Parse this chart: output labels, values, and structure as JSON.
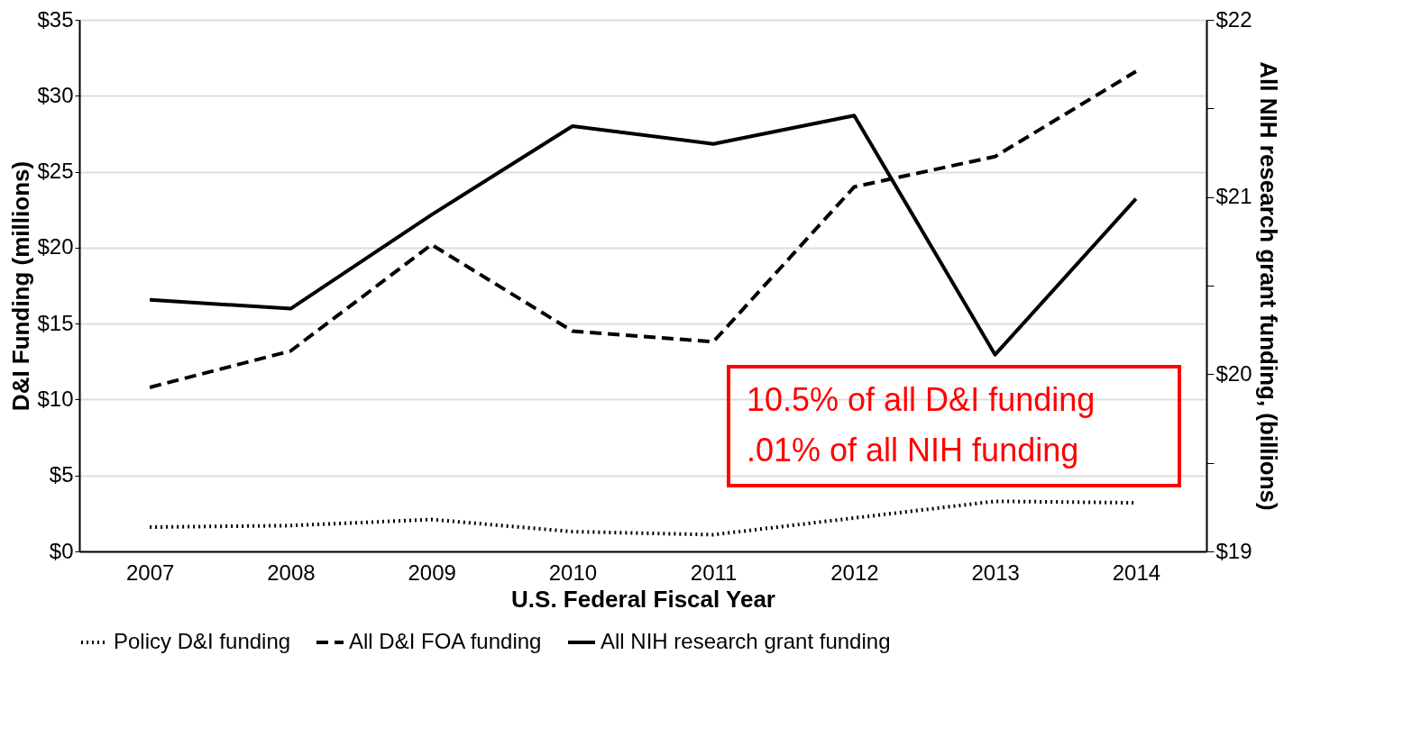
{
  "chart_data": {
    "type": "line",
    "xlabel": "U.S. Federal Fiscal Year",
    "ylabel": "D&I Funding (millions)",
    "y2label": "All NIH research grant funding, (billions)",
    "categories": [
      "2007",
      "2008",
      "2009",
      "2010",
      "2011",
      "2012",
      "2013",
      "2014"
    ],
    "series": [
      {
        "name": "Policy D&I funding",
        "color": "#000000",
        "line_style": "dotted",
        "values": [
          1.6,
          1.7,
          2.1,
          1.3,
          1.1,
          2.2,
          3.3,
          3.2
        ]
      },
      {
        "name": "All D&I FOA funding",
        "color": "#000000",
        "line_style": "dashed",
        "values": [
          10.8,
          13.2,
          20.2,
          14.5,
          13.8,
          24.0,
          26.0,
          31.6
        ]
      },
      {
        "name": "All NIH research grant funding",
        "color": "#000000",
        "line_style": "solid",
        "axis": "y2",
        "values": [
          20.42,
          20.37,
          20.9,
          21.4,
          21.3,
          21.46,
          20.11,
          20.99
        ]
      }
    ],
    "ylim": [
      0,
      35
    ],
    "yticks": [
      {
        "value": 0,
        "label": "$0"
      },
      {
        "value": 5,
        "label": "$5"
      },
      {
        "value": 10,
        "label": "$10"
      },
      {
        "value": 15,
        "label": "$15"
      },
      {
        "value": 20,
        "label": "$20"
      },
      {
        "value": 25,
        "label": "$25"
      },
      {
        "value": 30,
        "label": "$30"
      },
      {
        "value": 35,
        "label": "$35"
      }
    ],
    "y2lim": [
      19,
      22
    ],
    "y2ticks": [
      {
        "value": 19,
        "label": "$19"
      },
      {
        "value": 19.5,
        "label": null
      },
      {
        "value": 20,
        "label": "$20"
      },
      {
        "value": 20.5,
        "label": null
      },
      {
        "value": 21,
        "label": "$21"
      },
      {
        "value": 21.5,
        "label": null
      },
      {
        "value": 22,
        "label": "$22"
      }
    ],
    "grid": "y",
    "legend": "bottom",
    "marker": "none",
    "annotations": [
      "10.5% of all D&I funding",
      ".01% of all NIH funding"
    ]
  }
}
